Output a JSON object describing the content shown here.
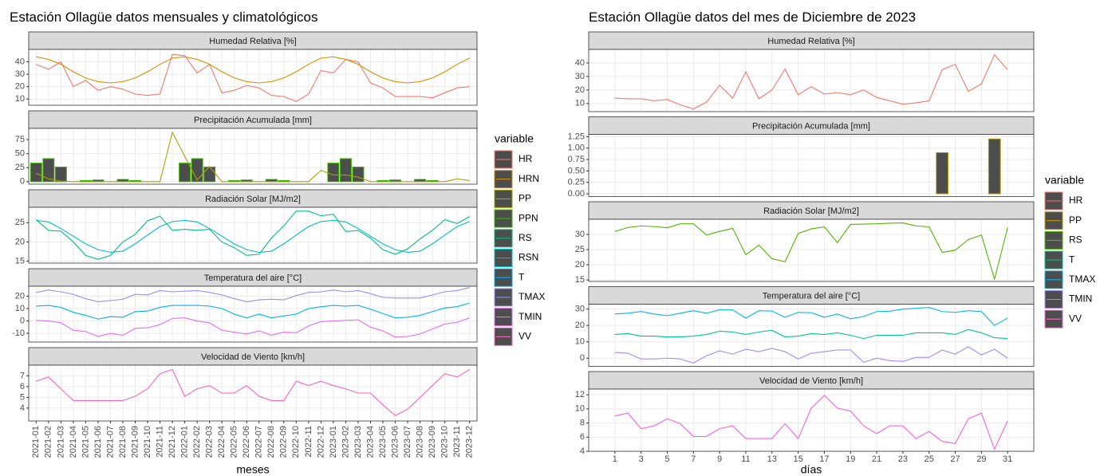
{
  "chart_data": [
    {
      "type": "line",
      "title": "Estación Ollagüe datos mensuales y climatológicos",
      "xlabel": "meses",
      "legend_title": "variable",
      "bar_fill": "#4d4d4d",
      "grid": true,
      "categories": [
        "2021-01",
        "2021-02",
        "2021-03",
        "2021-04",
        "2021-05",
        "2021-06",
        "2021-07",
        "2021-08",
        "2021-09",
        "2021-10",
        "2021-11",
        "2021-12",
        "2022-01",
        "2022-02",
        "2022-03",
        "2022-04",
        "2022-05",
        "2022-06",
        "2022-07",
        "2022-08",
        "2022-09",
        "2022-10",
        "2022-11",
        "2022-12",
        "2023-01",
        "2023-02",
        "2023-03",
        "2023-04",
        "2023-05",
        "2023-06",
        "2023-07",
        "2023-08",
        "2023-09",
        "2023-10",
        "2023-11",
        "2023-12"
      ],
      "panels": [
        {
          "title": "Humedad Relativa [%]",
          "ylim": [
            5,
            50
          ],
          "yticks": [
            10,
            20,
            30,
            40
          ],
          "series": [
            {
              "name": "HR",
              "color": "#F8766D",
              "values": [
                38,
                34,
                40,
                20,
                25,
                17,
                20,
                18,
                14,
                13,
                14,
                46,
                45,
                31,
                38,
                15,
                17,
                21,
                19,
                13,
                12,
                8,
                14,
                33,
                31,
                42,
                40,
                23,
                19,
                12,
                12,
                12,
                11,
                15,
                19,
                20
              ]
            },
            {
              "name": "HRN",
              "color": "#D89000",
              "values": [
                44,
                42,
                38,
                32,
                27,
                24,
                23,
                24,
                27,
                32,
                38,
                43,
                44,
                42,
                38,
                32,
                27,
                24,
                23,
                24,
                27,
                32,
                38,
                43,
                44,
                42,
                38,
                32,
                27,
                24,
                23,
                24,
                27,
                32,
                38,
                43
              ]
            }
          ]
        },
        {
          "title": "Precipitación Acumulada [mm]",
          "ylim": [
            -4.5,
            95
          ],
          "yticks": [
            0,
            25,
            50,
            75
          ],
          "series": [
            {
              "name": "PP",
              "color": "#A3A500",
              "values": [
                15,
                5,
                1,
                0,
                0,
                0,
                0,
                0,
                0,
                0,
                0,
                88,
                45,
                3,
                27,
                0,
                0,
                0,
                0,
                0,
                0,
                0,
                0,
                20,
                12,
                12,
                8,
                0,
                0,
                0,
                0,
                0,
                0,
                0,
                5,
                2
              ]
            },
            {
              "name": "PPN",
              "color": "#39B600",
              "type": "bar",
              "values": [
                33,
                41,
                26,
                0,
                2,
                3,
                0,
                4,
                2,
                0,
                0,
                0,
                33,
                41,
                26,
                0,
                2,
                3,
                0,
                4,
                2,
                0,
                0,
                0,
                33,
                41,
                26,
                0,
                2,
                3,
                0,
                4,
                2,
                0,
                0,
                0
              ]
            }
          ]
        },
        {
          "title": "Radiación Solar [MJ/m2]",
          "ylim": [
            14.5,
            29
          ],
          "yticks": [
            15,
            20,
            25
          ],
          "series": [
            {
              "name": "RS",
              "color": "#00BF7D",
              "values": [
                25.8,
                23,
                22.8,
                20,
                16.5,
                15.5,
                16.5,
                20,
                22,
                25.5,
                26.7,
                23,
                23.3,
                23,
                23.3,
                20,
                18.5,
                16.5,
                16.8,
                21,
                24.2,
                28,
                28,
                26.8,
                27.2,
                22.7,
                23,
                21,
                18,
                16.8,
                18.2,
                20.8,
                23,
                25.8,
                24.8,
                26.6
              ]
            },
            {
              "name": "RSN",
              "color": "#00BFC4",
              "values": [
                25.6,
                25.2,
                23.5,
                21.5,
                19.5,
                18,
                17.3,
                17.6,
                19.5,
                21.8,
                24,
                25.3,
                25.6,
                25.2,
                23.5,
                21.5,
                19.5,
                18,
                17.3,
                17.6,
                19.5,
                21.8,
                24,
                25.3,
                25.6,
                25.2,
                23.5,
                21.5,
                19.5,
                18,
                17.3,
                17.6,
                19.5,
                21.8,
                24,
                25.3
              ]
            }
          ]
        },
        {
          "title": "Temperatura del aire [°C]",
          "ylim": [
            -17,
            28
          ],
          "yticks": [
            -10,
            0,
            10,
            20
          ],
          "series": [
            {
              "name": "T",
              "color": "#00B0F6",
              "values": [
                12,
                12.5,
                11,
                7,
                4.5,
                1.5,
                3.5,
                3,
                7.5,
                8,
                11,
                12.5,
                12.5,
                12.5,
                12,
                10,
                5.5,
                2.5,
                5.5,
                2.5,
                4,
                5.5,
                10,
                11.5,
                12.5,
                12,
                12.5,
                9.5,
                6,
                2.5,
                3,
                4.5,
                7.5,
                10.5,
                11.5,
                14.5
              ]
            },
            {
              "name": "TMAX",
              "color": "#9590FF",
              "values": [
                23,
                25,
                23.5,
                21.5,
                18,
                15.5,
                16.5,
                17.5,
                21.5,
                21,
                24.5,
                23.5,
                24,
                24.5,
                23,
                21,
                18,
                15.5,
                17,
                17.5,
                17,
                20.5,
                23,
                23.5,
                25,
                23.5,
                24.5,
                22,
                19,
                18.5,
                18.5,
                18.5,
                21,
                23.5,
                24.5,
                27
              ]
            },
            {
              "name": "TMIN",
              "color": "#E76BF3",
              "values": [
                0.5,
                0,
                -1.5,
                -7.5,
                -8.5,
                -12.5,
                -10,
                -11.5,
                -6,
                -5.5,
                -3,
                2,
                2.5,
                0,
                -1.5,
                -7.5,
                -9,
                -10.5,
                -8,
                -11.5,
                -9,
                -9.5,
                -4,
                -0.5,
                0,
                0.5,
                1,
                -5,
                -8,
                -13,
                -12.5,
                -10.5,
                -6.5,
                -2.5,
                -1,
                2.5
              ]
            }
          ]
        },
        {
          "title": "Velocidad de Viento [km/h]",
          "ylim": [
            2.8,
            8
          ],
          "yticks": [
            4,
            5,
            6,
            7
          ],
          "series": [
            {
              "name": "VV",
              "color": "#FF62BC",
              "values": [
                6.5,
                6.9,
                5.8,
                4.7,
                4.7,
                4.7,
                4.7,
                4.7,
                5.1,
                5.8,
                7.2,
                7.6,
                5.1,
                5.8,
                6.1,
                5.4,
                5.4,
                6.1,
                5.1,
                4.7,
                4.7,
                6.5,
                6.1,
                6.5,
                6.1,
                5.8,
                5.4,
                5.4,
                4.3,
                3.3,
                3.9,
                5.0,
                6.1,
                7.2,
                6.9,
                7.6
              ]
            }
          ]
        }
      ]
    },
    {
      "type": "line",
      "title": "Estación Ollagüe datos del mes de Diciembre de 2023",
      "xlabel": "días",
      "legend_title": "variable",
      "bar_fill": "#4d4d4d",
      "grid": true,
      "x": [
        1,
        2,
        3,
        4,
        5,
        6,
        7,
        8,
        9,
        10,
        11,
        12,
        13,
        14,
        15,
        16,
        17,
        18,
        19,
        20,
        21,
        22,
        23,
        24,
        25,
        26,
        27,
        28,
        29,
        30,
        31
      ],
      "xlim": [
        -1,
        33
      ],
      "xticks": [
        1,
        3,
        5,
        7,
        9,
        11,
        13,
        15,
        17,
        19,
        21,
        23,
        25,
        27,
        29,
        31
      ],
      "panels": [
        {
          "title": "Humedad Relativa [%]",
          "ylim": [
            4,
            50
          ],
          "yticks": [
            10,
            20,
            30,
            40
          ],
          "series": [
            {
              "name": "HR",
              "color": "#F8766D",
              "values": [
                14,
                13.5,
                13.5,
                12,
                13,
                9,
                6,
                11,
                23.5,
                14,
                33.5,
                13.5,
                20,
                35.5,
                16.5,
                22.5,
                17,
                18,
                16.5,
                20,
                14.5,
                12,
                9.5,
                10.5,
                12,
                35,
                39,
                19,
                24.5,
                46,
                35
              ]
            }
          ]
        },
        {
          "title": "Precipitación Acumulada [mm]",
          "ylim": [
            -0.06,
            1.3
          ],
          "yticks": [
            {
              "value": 0,
              "label": "0.00"
            },
            0.25,
            {
              "value": 0.5,
              "label": "0.50"
            },
            0.75,
            {
              "value": 1,
              "label": "1.00"
            },
            1.25
          ],
          "series": [
            {
              "name": "PP",
              "color": "#C49A00",
              "type": "bar",
              "values": [
                0,
                0,
                0,
                0,
                0,
                0,
                0,
                0,
                0,
                0,
                0,
                0,
                0,
                0,
                0,
                0,
                0,
                0,
                0,
                0,
                0,
                0,
                0,
                0,
                0,
                0.9,
                0,
                0,
                0,
                1.2,
                0
              ]
            }
          ]
        },
        {
          "title": "Radiación Solar [MJ/m2]",
          "ylim": [
            14.5,
            35
          ],
          "yticks": [
            15,
            20,
            25,
            30
          ],
          "series": [
            {
              "name": "RS",
              "color": "#53B400",
              "values": [
                31,
                32.3,
                32.8,
                32.6,
                32.2,
                33.5,
                33.5,
                29.8,
                31,
                32,
                23.3,
                26.5,
                22,
                21,
                30.3,
                31.8,
                32.5,
                27.3,
                33.3,
                33.4,
                33.5,
                33.7,
                33.8,
                32.8,
                32.5,
                24.1,
                24.8,
                28.3,
                29.8,
                15.3,
                32.2
              ]
            }
          ]
        },
        {
          "title": "Temperatura del aire [°C]",
          "ylim": [
            -5,
            33
          ],
          "yticks": [
            0,
            10,
            20,
            30
          ],
          "series": [
            {
              "name": "T",
              "color": "#00C094",
              "values": [
                14.5,
                15,
                13.5,
                13.5,
                13,
                13,
                13.5,
                14.5,
                16.5,
                16,
                14.5,
                16,
                17,
                13,
                13.5,
                15,
                14.5,
                15.5,
                14,
                12,
                14,
                14,
                14,
                15.5,
                15.5,
                15.5,
                14.5,
                17.5,
                15.5,
                12.5,
                12
              ]
            },
            {
              "name": "TMAX",
              "color": "#00B6EB",
              "values": [
                27,
                27.5,
                28.5,
                27,
                26,
                27.5,
                29,
                27.5,
                29.5,
                29.5,
                24.5,
                29,
                28.8,
                25,
                28,
                27.8,
                25,
                27,
                24,
                25.5,
                28.5,
                28.7,
                30,
                30.5,
                31,
                28.5,
                28,
                29,
                28.5,
                20,
                24.5
              ]
            },
            {
              "name": "TMIN",
              "color": "#A58AFF",
              "values": [
                3.5,
                3,
                -0.5,
                -0.5,
                0,
                -0.5,
                -3,
                1.5,
                4.5,
                2.5,
                5.5,
                4,
                6,
                4,
                -0.5,
                3,
                4,
                5,
                5,
                -2.5,
                0,
                -1.5,
                -2,
                0.5,
                0.5,
                5,
                2.5,
                7,
                2,
                5.5,
                0
              ]
            }
          ]
        },
        {
          "title": "Velocidad de Viento [km/h]",
          "ylim": [
            4,
            12.8
          ],
          "yticks": [
            4,
            6,
            8,
            10,
            12
          ],
          "series": [
            {
              "name": "VV",
              "color": "#FB61D7",
              "values": [
                9,
                9.4,
                7.2,
                7.6,
                8.6,
                7.9,
                6.1,
                6.1,
                7.2,
                7.6,
                5.8,
                5.8,
                5.8,
                7.9,
                5.8,
                10.1,
                11.9,
                10.1,
                9.7,
                7.6,
                6.5,
                7.6,
                7.6,
                5.8,
                6.8,
                5.4,
                5.1,
                8.6,
                9.4,
                4.3,
                8.3
              ]
            }
          ]
        }
      ]
    }
  ]
}
